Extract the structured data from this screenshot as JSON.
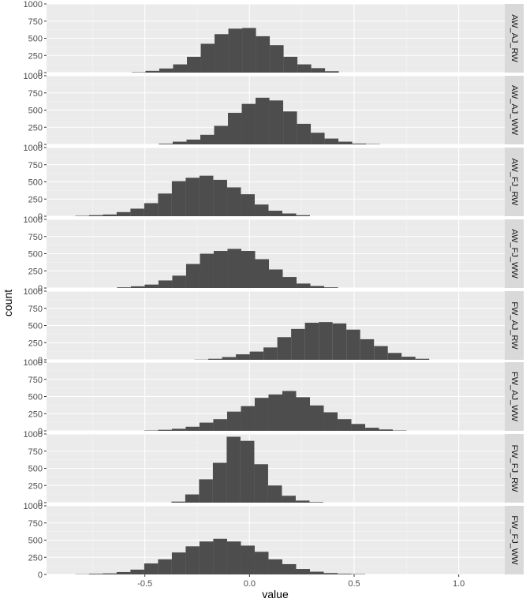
{
  "chart_data": {
    "type": "bar",
    "facet": "rows",
    "xlabel": "value",
    "ylabel": "count",
    "xlim": [
      -0.97,
      1.22
    ],
    "ylim": [
      0,
      1000
    ],
    "x_ticks": [
      {
        "value": -0.5,
        "label": "-0.5"
      },
      {
        "value": 0.0,
        "label": "0.0"
      },
      {
        "value": 0.5,
        "label": "0.5"
      },
      {
        "value": 1.0,
        "label": "1.0"
      }
    ],
    "y_ticks": [
      {
        "value": 0,
        "label": "0"
      },
      {
        "value": 250,
        "label": "250"
      },
      {
        "value": 500,
        "label": "500"
      },
      {
        "value": 750,
        "label": "750"
      },
      {
        "value": 1000,
        "label": "1000"
      }
    ],
    "bin_width": 0.066,
    "grid": true,
    "panels": [
      {
        "name": "AW_AJ_RW",
        "bin_centers": [
          -0.53,
          -0.464,
          -0.398,
          -0.332,
          -0.266,
          -0.2,
          -0.134,
          -0.068,
          -0.002,
          0.064,
          0.13,
          0.196,
          0.262,
          0.328,
          0.394
        ],
        "values": [
          5,
          25,
          60,
          120,
          230,
          420,
          560,
          640,
          650,
          530,
          400,
          230,
          120,
          65,
          20
        ]
      },
      {
        "name": "AW_AJ_WW",
        "bin_centers": [
          -0.4,
          -0.334,
          -0.268,
          -0.202,
          -0.136,
          -0.07,
          -0.004,
          0.062,
          0.128,
          0.194,
          0.26,
          0.326,
          0.392,
          0.458,
          0.524,
          0.59
        ],
        "values": [
          10,
          40,
          70,
          140,
          270,
          460,
          590,
          680,
          640,
          480,
          300,
          170,
          85,
          40,
          12,
          5
        ]
      },
      {
        "name": "AW_FJ_RW",
        "bin_centers": [
          -0.8,
          -0.734,
          -0.668,
          -0.602,
          -0.536,
          -0.47,
          -0.404,
          -0.338,
          -0.272,
          -0.206,
          -0.14,
          -0.074,
          -0.008,
          0.058,
          0.124,
          0.19,
          0.256
        ],
        "values": [
          5,
          15,
          25,
          60,
          110,
          190,
          330,
          510,
          560,
          590,
          530,
          420,
          320,
          170,
          80,
          40,
          15
        ]
      },
      {
        "name": "AW_FJ_WW",
        "bin_centers": [
          -0.6,
          -0.534,
          -0.468,
          -0.402,
          -0.336,
          -0.27,
          -0.204,
          -0.138,
          -0.072,
          -0.006,
          0.06,
          0.126,
          0.192,
          0.258,
          0.324,
          0.39
        ],
        "values": [
          10,
          25,
          50,
          110,
          180,
          350,
          500,
          540,
          570,
          540,
          420,
          270,
          160,
          65,
          30,
          10
        ]
      },
      {
        "name": "FW_AJ_RW",
        "bin_centers": [
          -0.23,
          -0.164,
          -0.098,
          -0.032,
          0.034,
          0.1,
          0.166,
          0.232,
          0.298,
          0.364,
          0.43,
          0.496,
          0.562,
          0.628,
          0.694,
          0.76,
          0.826
        ],
        "values": [
          3,
          15,
          40,
          80,
          120,
          180,
          330,
          450,
          540,
          550,
          530,
          440,
          300,
          200,
          100,
          45,
          15
        ]
      },
      {
        "name": "FW_AJ_WW",
        "bin_centers": [
          -0.47,
          -0.404,
          -0.338,
          -0.272,
          -0.206,
          -0.14,
          -0.074,
          -0.008,
          0.058,
          0.124,
          0.19,
          0.256,
          0.322,
          0.388,
          0.454,
          0.52,
          0.586,
          0.652,
          0.718
        ],
        "values": [
          5,
          15,
          30,
          60,
          120,
          170,
          280,
          360,
          480,
          530,
          580,
          490,
          370,
          270,
          170,
          100,
          45,
          20,
          5
        ]
      },
      {
        "name": "FW_FJ_RW",
        "bin_centers": [
          -0.34,
          -0.274,
          -0.208,
          -0.142,
          -0.076,
          -0.01,
          0.056,
          0.122,
          0.188,
          0.254,
          0.32
        ],
        "values": [
          15,
          120,
          340,
          580,
          960,
          900,
          560,
          250,
          100,
          30,
          8
        ]
      },
      {
        "name": "FW_FJ_WW",
        "bin_centers": [
          -0.8,
          -0.734,
          -0.668,
          -0.602,
          -0.536,
          -0.47,
          -0.404,
          -0.338,
          -0.272,
          -0.206,
          -0.14,
          -0.074,
          -0.008,
          0.058,
          0.124,
          0.19,
          0.256,
          0.322,
          0.388,
          0.454,
          0.52
        ],
        "values": [
          3,
          10,
          15,
          35,
          70,
          160,
          220,
          320,
          410,
          480,
          520,
          480,
          420,
          330,
          220,
          150,
          80,
          40,
          20,
          10,
          5
        ]
      }
    ]
  }
}
